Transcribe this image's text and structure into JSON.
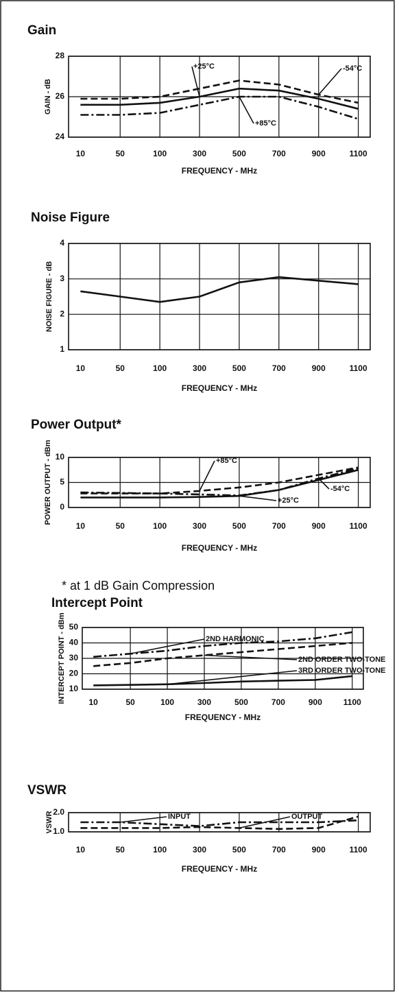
{
  "chart_data": [
    {
      "type": "line",
      "title": "Gain",
      "y_label": "GAIN - dB",
      "x_label": "FREQUENCY - MHz",
      "categories": [
        "10",
        "50",
        "100",
        "300",
        "500",
        "700",
        "900",
        "1100"
      ],
      "ylim": [
        24,
        28
      ],
      "yticks": [
        24,
        26,
        28
      ],
      "grid": true,
      "series": [
        {
          "name": "-54°C",
          "color": "#111111",
          "dash": "dashed",
          "values": [
            25.9,
            25.9,
            26.0,
            26.4,
            26.8,
            26.6,
            26.1,
            25.7
          ]
        },
        {
          "name": "+25°C",
          "color": "#111111",
          "dash": "solid",
          "values": [
            25.6,
            25.6,
            25.7,
            26.0,
            26.4,
            26.3,
            25.9,
            25.4
          ]
        },
        {
          "name": "+85°C",
          "color": "#111111",
          "dash": "dashdot",
          "values": [
            25.1,
            25.1,
            25.2,
            25.6,
            26.0,
            26.0,
            25.5,
            24.9
          ]
        }
      ]
    },
    {
      "type": "line",
      "title": "Noise Figure",
      "y_label": "NOISE FIGURE - dB",
      "x_label": "FREQUENCY - MHz",
      "categories": [
        "10",
        "50",
        "100",
        "300",
        "500",
        "700",
        "900",
        "1100"
      ],
      "ylim": [
        1,
        4
      ],
      "yticks": [
        1,
        2,
        3,
        4
      ],
      "grid": true,
      "series": [
        {
          "color": "#111111",
          "dash": "solid",
          "values": [
            2.65,
            2.5,
            2.35,
            2.5,
            2.9,
            3.05,
            2.95,
            2.85
          ]
        }
      ]
    },
    {
      "type": "line",
      "title": "Power Output*",
      "y_label": "POWER OUTPUT - dBm",
      "x_label": "FREQUENCY - MHz",
      "note": "* at 1 dB Gain Compression",
      "categories": [
        "10",
        "50",
        "100",
        "300",
        "500",
        "700",
        "900",
        "1100"
      ],
      "ylim": [
        0,
        10
      ],
      "yticks": [
        0,
        5,
        10
      ],
      "grid": true,
      "series": [
        {
          "name": "+85°C",
          "color": "#111111",
          "dash": "dashed",
          "values": [
            2.8,
            2.8,
            2.8,
            3.3,
            4.0,
            5.0,
            6.5,
            8.0
          ]
        },
        {
          "name": "+25°C",
          "color": "#111111",
          "dash": "solid",
          "values": [
            2.0,
            2.0,
            2.0,
            2.1,
            2.3,
            3.5,
            5.5,
            7.5
          ]
        },
        {
          "name": "-54°C",
          "color": "#111111",
          "dash": "dashdot",
          "values": [
            3.0,
            2.9,
            2.8,
            2.6,
            2.4,
            3.5,
            5.8,
            7.8
          ]
        }
      ]
    },
    {
      "type": "line",
      "title": "Intercept Point",
      "y_label": "INTERCEPT POINT - dBm",
      "x_label": "FREQUENCY - MHz",
      "categories": [
        "10",
        "50",
        "100",
        "300",
        "500",
        "700",
        "900",
        "1100"
      ],
      "ylim": [
        10,
        50
      ],
      "yticks": [
        10,
        20,
        30,
        40,
        50
      ],
      "grid": true,
      "series": [
        {
          "name": "2ND HARMONIC",
          "color": "#111111",
          "dash": "dashdot",
          "values": [
            31,
            33,
            35,
            38,
            40,
            41,
            43,
            47
          ]
        },
        {
          "name": "2ND ORDER TWO-TONE",
          "color": "#111111",
          "dash": "dashed",
          "values": [
            25,
            27,
            30,
            32,
            34,
            36,
            38,
            40
          ]
        },
        {
          "name": "3RD ORDER TWO-TONE",
          "color": "#111111",
          "dash": "solid",
          "values": [
            12.5,
            12.8,
            13.2,
            14,
            15,
            15.5,
            16,
            18.5
          ]
        }
      ]
    },
    {
      "type": "line",
      "title": "VSWR",
      "y_label": "VSWR",
      "x_label": "FREQUENCY - MHz",
      "categories": [
        "10",
        "50",
        "100",
        "300",
        "500",
        "700",
        "900",
        "1100"
      ],
      "ylim": [
        1,
        2
      ],
      "yticks": [
        {
          "value": 1,
          "label": "1.0"
        },
        {
          "value": 2,
          "label": "2.0"
        }
      ],
      "grid": true,
      "series": [
        {
          "name": "INPUT",
          "color": "#111111",
          "dash": "dashdot",
          "values": [
            1.5,
            1.5,
            1.4,
            1.3,
            1.5,
            1.5,
            1.5,
            1.6
          ]
        },
        {
          "name": "OUTPUT",
          "color": "#111111",
          "dash": "dashed",
          "values": [
            1.2,
            1.2,
            1.2,
            1.25,
            1.2,
            1.15,
            1.2,
            1.8
          ]
        }
      ]
    }
  ]
}
